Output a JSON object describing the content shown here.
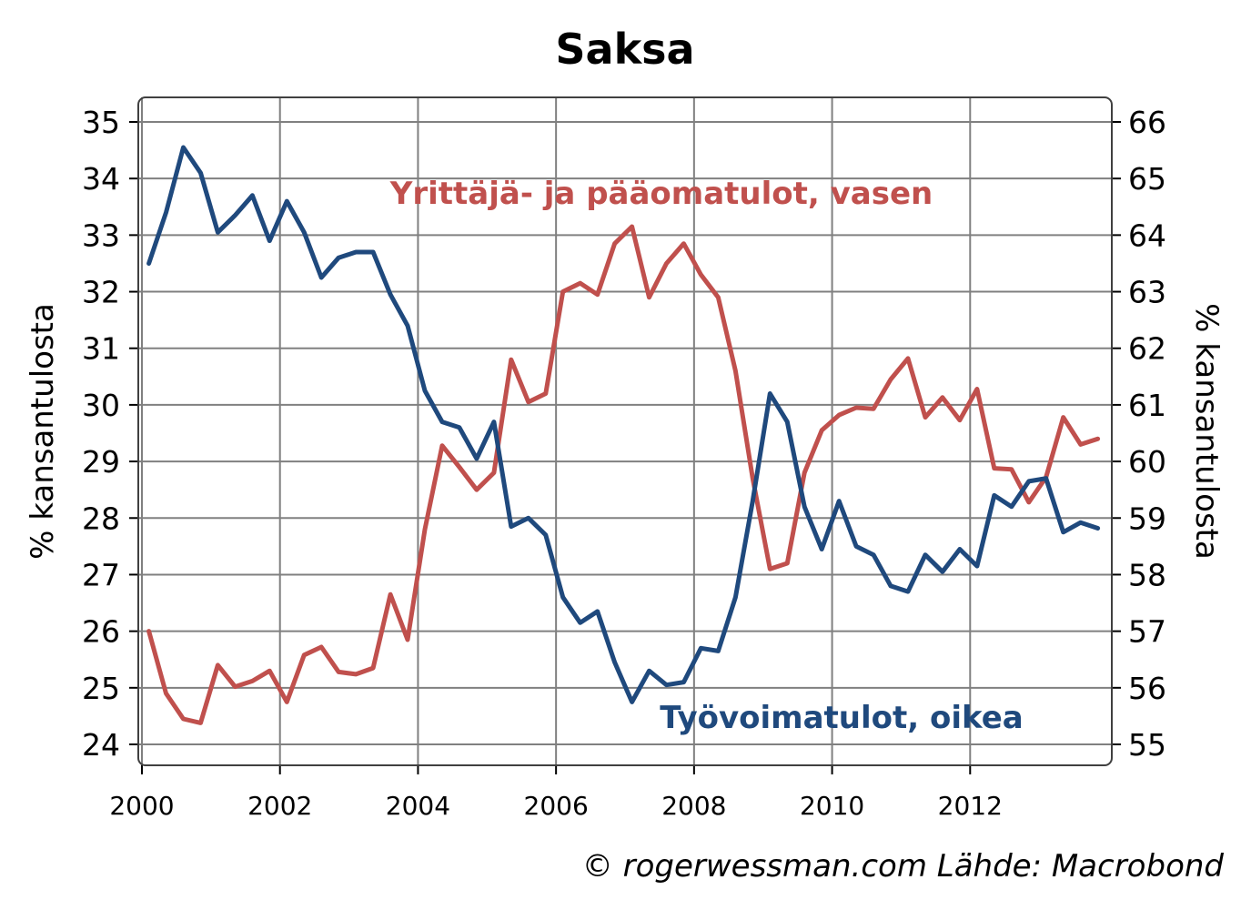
{
  "chart_data": {
    "type": "line",
    "title": "Saksa",
    "ylabel_left": "% kansantulosta",
    "ylabel_right": "% kansantulosta",
    "ylim_left": [
      24,
      35
    ],
    "ylim_right": [
      55,
      66
    ],
    "yticks_left": [
      "24",
      "25",
      "26",
      "27",
      "28",
      "29",
      "30",
      "31",
      "32",
      "33",
      "34",
      "35"
    ],
    "yticks_right": [
      "55",
      "56",
      "57",
      "58",
      "59",
      "60",
      "61",
      "62",
      "63",
      "64",
      "65",
      "66"
    ],
    "xlim": [
      2000,
      2014
    ],
    "xticks": [
      "2000",
      "2002",
      "2004",
      "2006",
      "2008",
      "2010",
      "2012"
    ],
    "grid": true,
    "annotations": {
      "capital": "Yrittäjä- ja pääomatulot, vasen",
      "labour": "Työvoimatulot, oikea"
    },
    "source_note": "© rogerwessman.com Lähde: Macrobond",
    "colors": {
      "capital": "#c0504d",
      "labour": "#1f497d"
    },
    "x": [
      2000.1,
      2000.35,
      2000.6,
      2000.85,
      2001.1,
      2001.35,
      2001.6,
      2001.85,
      2002.1,
      2002.35,
      2002.6,
      2002.85,
      2003.1,
      2003.35,
      2003.6,
      2003.85,
      2004.1,
      2004.35,
      2004.6,
      2004.85,
      2005.1,
      2005.35,
      2005.6,
      2005.85,
      2006.1,
      2006.35,
      2006.6,
      2006.85,
      2007.1,
      2007.35,
      2007.6,
      2007.85,
      2008.1,
      2008.35,
      2008.6,
      2008.85,
      2009.1,
      2009.35,
      2009.6,
      2009.85,
      2010.1,
      2010.35,
      2010.6,
      2010.85,
      2011.1,
      2011.35,
      2011.6,
      2011.85,
      2012.1,
      2012.35,
      2012.6,
      2012.85,
      2013.1,
      2013.35,
      2013.6,
      2013.85
    ],
    "series": [
      {
        "name": "Yrittäjä- ja pääomatulot, vasen",
        "axis": "left",
        "values": [
          26.0,
          24.9,
          24.45,
          24.38,
          25.4,
          25.02,
          25.12,
          25.3,
          24.75,
          25.58,
          25.72,
          25.28,
          25.24,
          25.35,
          26.65,
          25.85,
          27.8,
          29.28,
          28.9,
          28.5,
          28.8,
          30.8,
          30.05,
          30.2,
          32.0,
          32.15,
          31.95,
          32.85,
          33.15,
          31.9,
          32.5,
          32.85,
          32.3,
          31.9,
          30.6,
          28.7,
          27.1,
          27.2,
          28.8,
          29.55,
          29.82,
          29.95,
          29.93,
          30.45,
          30.82,
          29.78,
          30.13,
          29.73,
          30.28,
          28.88,
          28.86,
          28.28,
          28.72,
          29.78,
          29.3,
          29.4
        ]
      },
      {
        "name": "Työvoimatulot, oikea",
        "axis": "right",
        "values": [
          63.5,
          64.4,
          65.55,
          65.1,
          64.05,
          64.35,
          64.7,
          63.9,
          64.6,
          64.05,
          63.25,
          63.6,
          63.7,
          63.7,
          62.95,
          62.4,
          61.25,
          60.7,
          60.6,
          60.05,
          60.7,
          58.85,
          59.0,
          58.7,
          57.6,
          57.15,
          57.35,
          56.45,
          55.75,
          56.3,
          56.05,
          56.1,
          56.7,
          56.65,
          57.6,
          59.3,
          61.2,
          60.7,
          59.2,
          58.45,
          59.3,
          58.5,
          58.35,
          57.8,
          57.7,
          58.35,
          58.05,
          58.45,
          58.15,
          59.4,
          59.2,
          59.65,
          59.7,
          58.75,
          58.92,
          58.82
        ]
      }
    ]
  }
}
